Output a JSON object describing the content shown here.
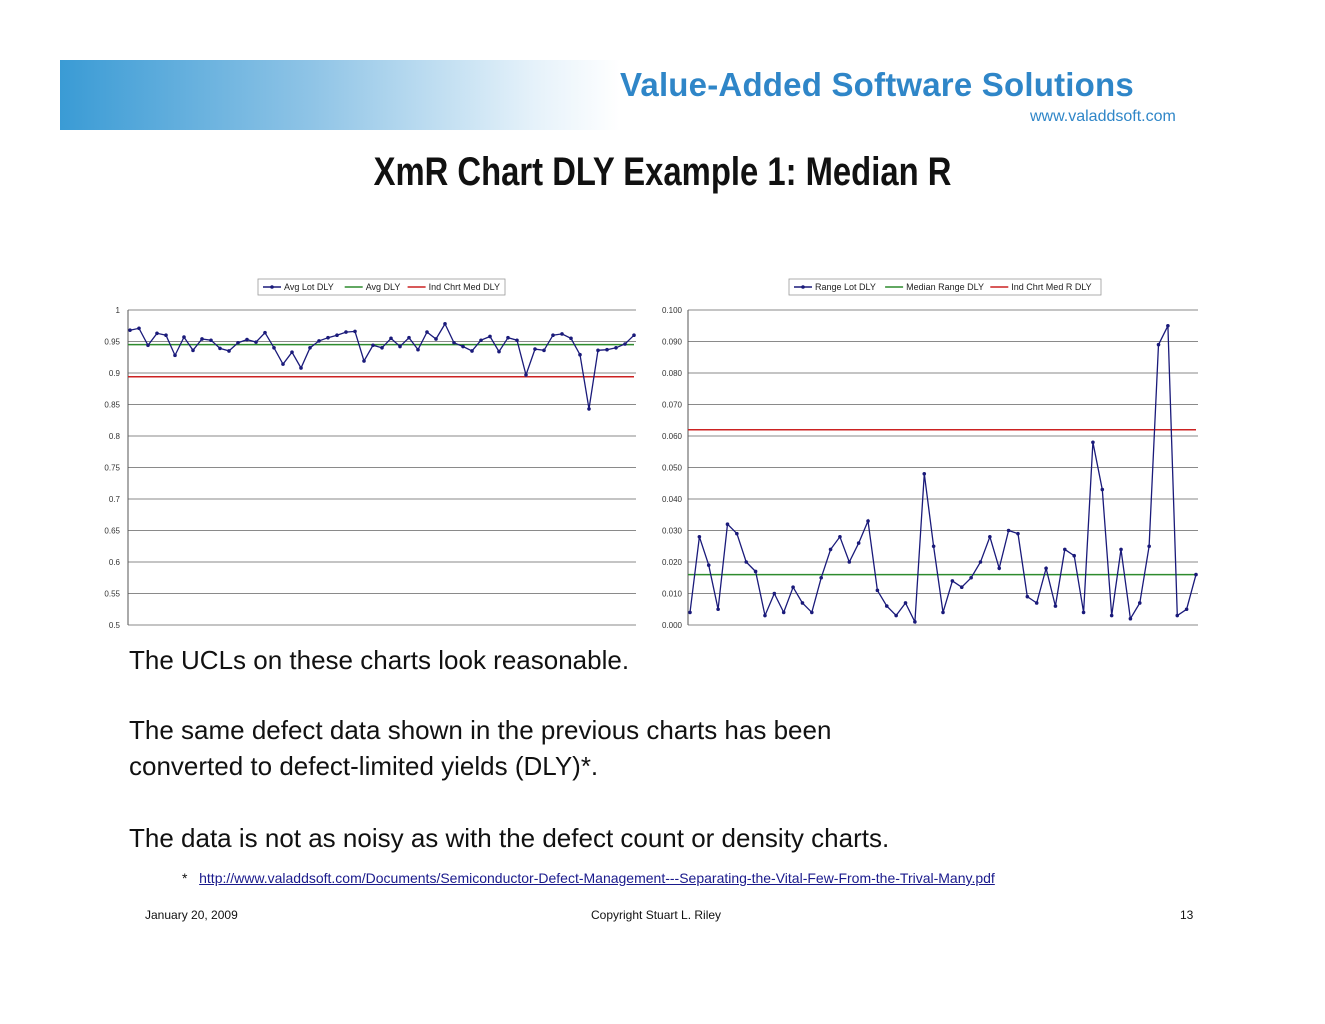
{
  "header": {
    "brand": "Value-Added Software Solutions",
    "url": "www.valaddsoft.com"
  },
  "title": "XmR Chart DLY Example 1:  Median R",
  "chart_data": [
    {
      "type": "line",
      "legend": [
        "Avg Lot DLY",
        "Avg DLY",
        "Ind Chrt Med DLY"
      ],
      "legend_position": "top",
      "ylim": [
        0.5,
        1
      ],
      "yticks": [
        "0.5",
        "0.55",
        "0.6",
        "0.65",
        "0.7",
        "0.75",
        "0.8",
        "0.85",
        "0.9",
        "0.95",
        "1"
      ],
      "grid": true,
      "series": [
        {
          "name": "Avg Lot DLY",
          "color": "#1a1a7a",
          "values": [
            0.968,
            0.971,
            0.944,
            0.963,
            0.96,
            0.928,
            0.957,
            0.936,
            0.954,
            0.952,
            0.939,
            0.935,
            0.948,
            0.953,
            0.949,
            0.964,
            0.94,
            0.914,
            0.933,
            0.908,
            0.94,
            0.951,
            0.956,
            0.96,
            0.965,
            0.966,
            0.919,
            0.944,
            0.94,
            0.955,
            0.942,
            0.956,
            0.937,
            0.965,
            0.954,
            0.978,
            0.948,
            0.942,
            0.935,
            0.952,
            0.958,
            0.934,
            0.956,
            0.952,
            0.897,
            0.938,
            0.936,
            0.96,
            0.962,
            0.955,
            0.929,
            0.843,
            0.936,
            0.937,
            0.94,
            0.946,
            0.96
          ]
        },
        {
          "name": "Avg DLY",
          "color": "#2e8b2e",
          "values": [
            0.945
          ]
        },
        {
          "name": "Ind Chrt Med DLY",
          "color": "#cc2222",
          "values": [
            0.894
          ]
        }
      ]
    },
    {
      "type": "line",
      "legend": [
        "Range Lot DLY",
        "Median Range DLY",
        "Ind Chrt Med R DLY"
      ],
      "legend_position": "top",
      "ylim": [
        0,
        0.1
      ],
      "yticks": [
        "0.000",
        "0.010",
        "0.020",
        "0.030",
        "0.040",
        "0.050",
        "0.060",
        "0.070",
        "0.080",
        "0.090",
        "0.100"
      ],
      "grid": true,
      "series": [
        {
          "name": "Range Lot DLY",
          "color": "#1a1a7a",
          "values": [
            0.004,
            0.028,
            0.019,
            0.005,
            0.032,
            0.029,
            0.02,
            0.017,
            0.003,
            0.01,
            0.004,
            0.012,
            0.007,
            0.004,
            0.015,
            0.024,
            0.028,
            0.02,
            0.026,
            0.033,
            0.011,
            0.006,
            0.003,
            0.007,
            0.001,
            0.048,
            0.025,
            0.004,
            0.014,
            0.012,
            0.015,
            0.02,
            0.028,
            0.018,
            0.03,
            0.029,
            0.009,
            0.007,
            0.018,
            0.006,
            0.024,
            0.022,
            0.004,
            0.058,
            0.043,
            0.003,
            0.024,
            0.002,
            0.007,
            0.025,
            0.089,
            0.095,
            0.003,
            0.005,
            0.016
          ]
        },
        {
          "name": "Median Range DLY",
          "color": "#2e8b2e",
          "values": [
            0.016
          ]
        },
        {
          "name": "Ind Chrt Med R DLY",
          "color": "#cc2222",
          "values": [
            0.062
          ]
        }
      ]
    }
  ],
  "body": {
    "line1": "The UCLs on these charts look reasonable.",
    "line2a": "The same defect data shown in the previous charts has been",
    "line2b": "converted to defect-limited yields (DLY)*.",
    "line3": "The data is not as noisy as with the defect count or density charts."
  },
  "footnote": {
    "marker": "*",
    "link": "http://www.valaddsoft.com/Documents/Semiconductor-Defect-Management---Separating-the-Vital-Few-From-the-Trival-Many.pdf"
  },
  "footer": {
    "date": "January 20, 2009",
    "copyright": "Copyright    Stuart L. Riley",
    "page": "13"
  }
}
